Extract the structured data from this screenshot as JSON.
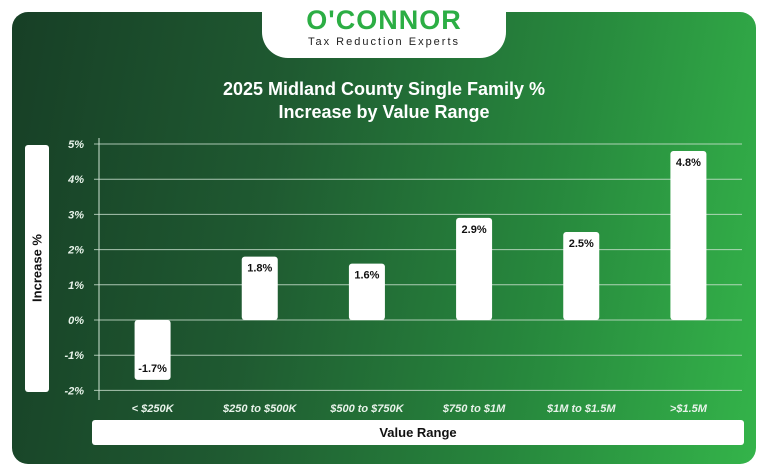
{
  "logo": {
    "name": "O'CONNOR",
    "tagline": "Tax Reduction Experts"
  },
  "colors": {
    "brand_green": "#2cae44",
    "bar": "#ffffff",
    "grid": "#cfe3d3"
  },
  "chart_data": {
    "type": "bar",
    "title": "2025 Midland County Single Family % Increase by Value Range",
    "title_lines": [
      "2025 Midland County Single Family %",
      "Increase by Value Range"
    ],
    "xlabel": "Value Range",
    "ylabel": "Increase %",
    "categories": [
      "< $250K",
      "$250 to $500K",
      "$500 to $750K",
      "$750 to $1M",
      "$1M to $1.5M",
      ">$1.5M"
    ],
    "values": [
      -1.7,
      1.8,
      1.6,
      2.9,
      2.5,
      4.8
    ],
    "data_labels": [
      "-1.7%",
      "1.8%",
      "1.6%",
      "2.9%",
      "2.5%",
      "4.8%"
    ],
    "ylim": [
      -2,
      5
    ],
    "yticks": [
      "5%",
      "4%",
      "3%",
      "2%",
      "1%",
      "0%",
      "-1%",
      "-2%"
    ],
    "grid": true,
    "legend": "none"
  }
}
